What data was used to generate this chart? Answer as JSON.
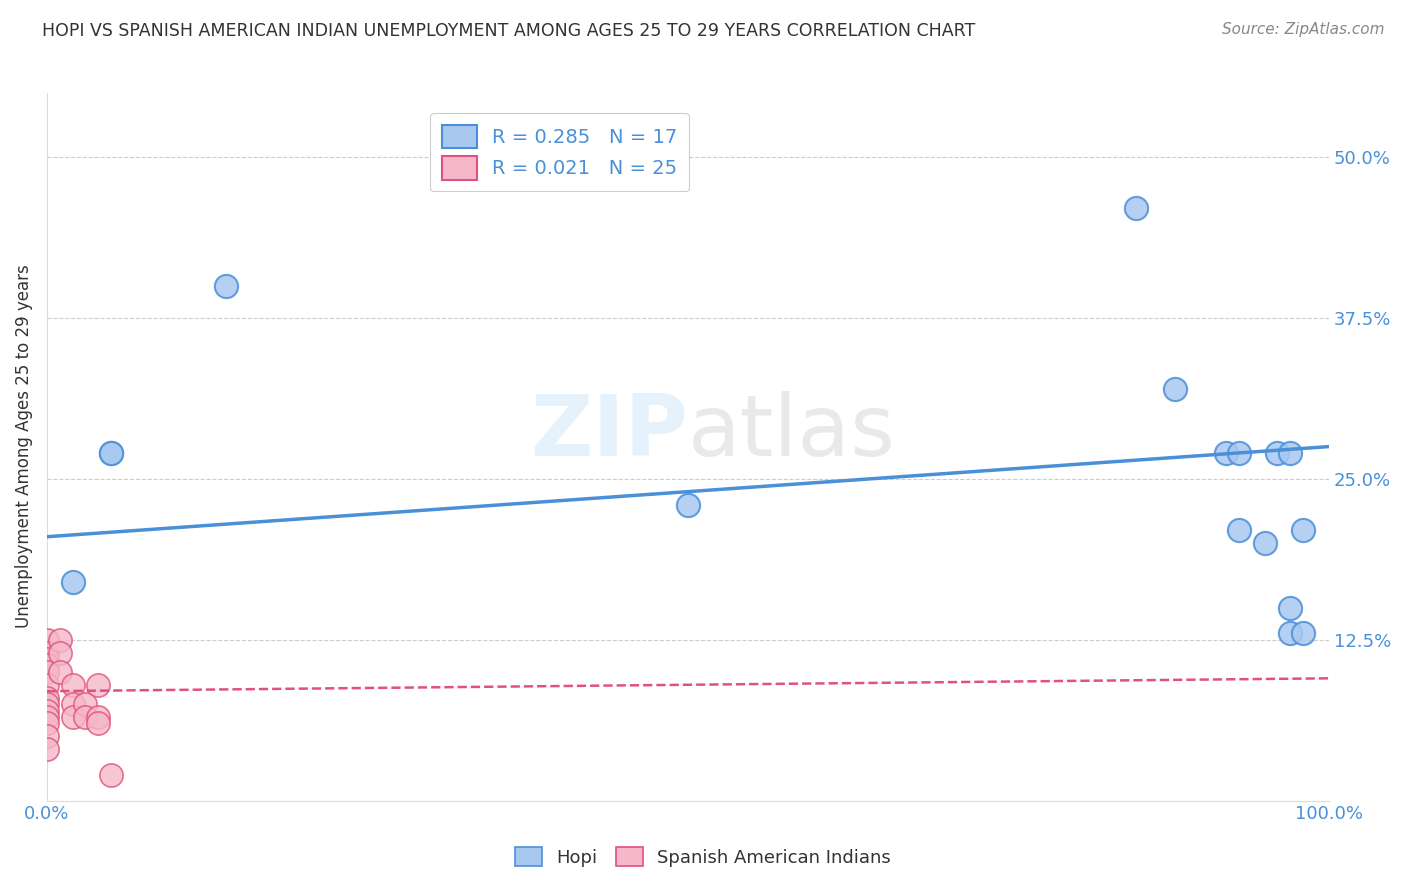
{
  "title": "HOPI VS SPANISH AMERICAN INDIAN UNEMPLOYMENT AMONG AGES 25 TO 29 YEARS CORRELATION CHART",
  "source": "Source: ZipAtlas.com",
  "ylabel": "Unemployment Among Ages 25 to 29 years",
  "xlim": [
    0,
    1.0
  ],
  "ylim": [
    0,
    0.55
  ],
  "xticks": [
    0.0,
    0.2,
    0.4,
    0.6,
    0.8,
    1.0
  ],
  "xticklabels": [
    "0.0%",
    "",
    "",
    "",
    "",
    "100.0%"
  ],
  "yticks": [
    0.0,
    0.125,
    0.25,
    0.375,
    0.5
  ],
  "yticklabels": [
    "",
    "12.5%",
    "25.0%",
    "37.5%",
    "50.0%"
  ],
  "hopi_color": "#a8c8f0",
  "hopi_line_color": "#4a90d9",
  "spanish_color": "#f5b8c8",
  "spanish_line_color": "#e05080",
  "watermark": "ZIPatlas",
  "legend_r_hopi": "R = 0.285",
  "legend_n_hopi": "N = 17",
  "legend_r_spanish": "R = 0.021",
  "legend_n_spanish": "N = 25",
  "hopi_x": [
    0.02,
    0.05,
    0.05,
    0.14,
    0.5,
    0.85,
    0.88,
    0.92,
    0.93,
    0.93,
    0.95,
    0.96,
    0.97,
    0.97,
    0.97,
    0.98,
    0.98
  ],
  "hopi_y": [
    0.17,
    0.27,
    0.27,
    0.4,
    0.23,
    0.46,
    0.32,
    0.27,
    0.21,
    0.27,
    0.2,
    0.27,
    0.15,
    0.13,
    0.27,
    0.21,
    0.13
  ],
  "spanish_x": [
    0.0,
    0.0,
    0.0,
    0.0,
    0.0,
    0.0,
    0.0,
    0.0,
    0.0,
    0.0,
    0.0,
    0.0,
    0.0,
    0.01,
    0.01,
    0.01,
    0.02,
    0.02,
    0.02,
    0.03,
    0.03,
    0.04,
    0.04,
    0.04,
    0.05
  ],
  "spanish_y": [
    0.125,
    0.115,
    0.11,
    0.105,
    0.1,
    0.09,
    0.08,
    0.075,
    0.07,
    0.065,
    0.06,
    0.05,
    0.04,
    0.125,
    0.115,
    0.1,
    0.09,
    0.075,
    0.065,
    0.075,
    0.065,
    0.09,
    0.065,
    0.06,
    0.02
  ],
  "hopi_line_x": [
    0.0,
    1.0
  ],
  "hopi_line_y": [
    0.205,
    0.275
  ],
  "spanish_line_x": [
    0.0,
    1.0
  ],
  "spanish_line_y": [
    0.085,
    0.095
  ]
}
